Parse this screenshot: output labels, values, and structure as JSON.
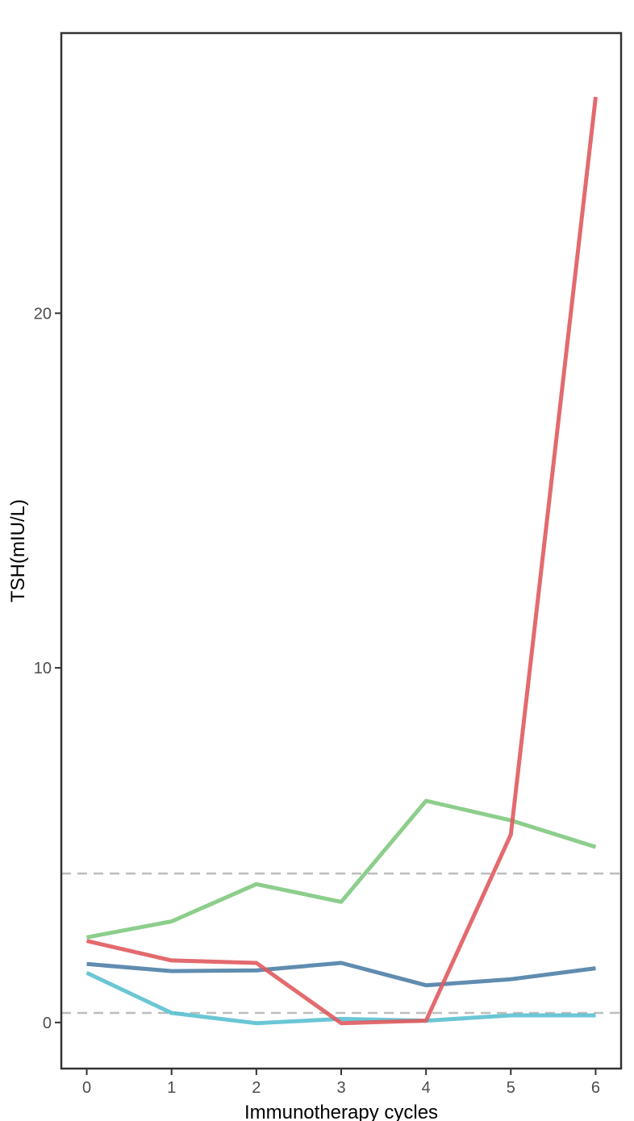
{
  "chart_data": {
    "type": "line",
    "xlabel": "Immunotherapy cycles",
    "ylabel": "TSH(mIU/L)",
    "x": [
      0,
      1,
      2,
      3,
      4,
      5,
      6
    ],
    "x_ticks": [
      "0",
      "1",
      "2",
      "3",
      "4",
      "5",
      "6"
    ],
    "y_ticks": [
      "0",
      "10",
      "20"
    ],
    "xlim": [
      -0.3,
      6.3
    ],
    "ylim": [
      -1.3,
      27.9
    ],
    "grid": false,
    "legend": "none",
    "reference_lines": [
      4.2,
      0.27
    ],
    "series": [
      {
        "color": "#7fc97f",
        "values": [
          2.4,
          2.85,
          3.9,
          3.4,
          6.25,
          5.7,
          4.95
        ]
      },
      {
        "color": "#4f7fa7",
        "values": [
          1.65,
          1.45,
          1.47,
          1.68,
          1.05,
          1.22,
          1.53
        ]
      },
      {
        "color": "#5bc0d0",
        "values": [
          1.4,
          0.27,
          -0.02,
          0.1,
          0.05,
          0.2,
          0.2
        ]
      },
      {
        "color": "#e05a5e",
        "values": [
          2.3,
          1.75,
          1.68,
          -0.02,
          0.05,
          5.3,
          26.1
        ]
      }
    ]
  }
}
